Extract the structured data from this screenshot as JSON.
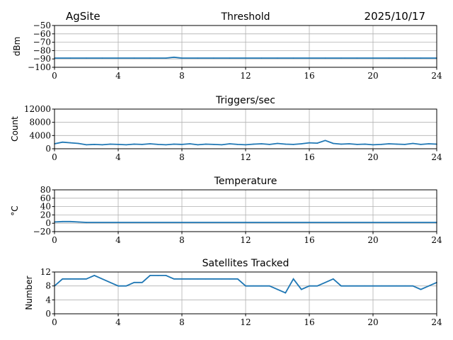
{
  "header": {
    "site": "AgSite",
    "date": "2025/10/17"
  },
  "chart_data": [
    {
      "type": "line",
      "title": "Threshold",
      "xlabel": "",
      "ylabel": "dBm",
      "xlim": [
        0,
        24
      ],
      "ylim": [
        -100,
        -50
      ],
      "xticks": [
        "0",
        "4",
        "8",
        "12",
        "16",
        "20",
        "24"
      ],
      "yticks": [
        "−50",
        "−60",
        "−70",
        "−80",
        "−90",
        "−100"
      ],
      "ytick_values": [
        -50,
        -60,
        -70,
        -80,
        -90,
        -100
      ],
      "x": [
        0,
        1,
        2,
        3,
        4,
        5,
        6,
        7,
        7.5,
        8,
        9,
        10,
        11,
        12,
        13,
        14,
        15,
        16,
        17,
        18,
        19,
        20,
        21,
        22,
        23,
        24
      ],
      "y": [
        -89,
        -89,
        -89,
        -89,
        -89,
        -89,
        -89,
        -89,
        -88,
        -89,
        -89,
        -89,
        -89,
        -89,
        -89,
        -89,
        -89,
        -89,
        -89,
        -89,
        -89,
        -89,
        -89,
        -89,
        -89,
        -89
      ],
      "grid": true,
      "color": "#1f77b4"
    },
    {
      "type": "line",
      "title": "Triggers/sec",
      "xlabel": "",
      "ylabel": "Count",
      "xlim": [
        0,
        24
      ],
      "ylim": [
        0,
        12000
      ],
      "xticks": [
        "0",
        "4",
        "8",
        "12",
        "16",
        "20",
        "24"
      ],
      "yticks": [
        "12000",
        "8000",
        "4000",
        "0"
      ],
      "ytick_values": [
        12000,
        8000,
        4000,
        0
      ],
      "x": [
        0,
        0.5,
        1,
        1.5,
        2,
        2.5,
        3,
        3.5,
        4,
        4.5,
        5,
        5.5,
        6,
        6.5,
        7,
        7.5,
        8,
        8.5,
        9,
        9.5,
        10,
        10.5,
        11,
        11.5,
        12,
        12.5,
        13,
        13.5,
        14,
        14.5,
        15,
        15.5,
        16,
        16.5,
        17,
        17.5,
        18,
        18.5,
        19,
        19.5,
        20,
        20.5,
        21,
        21.5,
        22,
        22.5,
        23,
        23.5,
        24
      ],
      "y": [
        1500,
        2000,
        1800,
        1600,
        1200,
        1300,
        1200,
        1400,
        1300,
        1200,
        1400,
        1300,
        1500,
        1300,
        1200,
        1400,
        1300,
        1500,
        1200,
        1400,
        1300,
        1200,
        1500,
        1300,
        1200,
        1400,
        1500,
        1300,
        1600,
        1400,
        1300,
        1500,
        1800,
        1700,
        2500,
        1600,
        1400,
        1500,
        1300,
        1400,
        1200,
        1300,
        1500,
        1400,
        1300,
        1600,
        1300,
        1500,
        1400
      ],
      "grid": true,
      "color": "#1f77b4"
    },
    {
      "type": "line",
      "title": "Temperature",
      "xlabel": "",
      "ylabel": "°C",
      "xlim": [
        0,
        24
      ],
      "ylim": [
        -20,
        80
      ],
      "xticks": [
        "0",
        "4",
        "8",
        "12",
        "16",
        "20",
        "24"
      ],
      "yticks": [
        "80",
        "60",
        "40",
        "20",
        "0",
        "−20"
      ],
      "ytick_values": [
        80,
        60,
        40,
        20,
        0,
        -20
      ],
      "x": [
        0,
        0.5,
        1,
        1.5,
        2,
        4,
        8,
        12,
        16,
        20,
        24
      ],
      "y": [
        3,
        4,
        4,
        3,
        2,
        2,
        2,
        2,
        2,
        2,
        2
      ],
      "grid": true,
      "color": "#1f77b4"
    },
    {
      "type": "line",
      "title": "Satellites Tracked",
      "xlabel": "",
      "ylabel": "Number",
      "xlim": [
        0,
        24
      ],
      "ylim": [
        0,
        12
      ],
      "xticks": [
        "0",
        "4",
        "8",
        "12",
        "16",
        "20",
        "24"
      ],
      "yticks": [
        "12",
        "8",
        "4",
        "0"
      ],
      "ytick_values": [
        12,
        8,
        4,
        0
      ],
      "x": [
        0,
        0.25,
        0.5,
        1,
        1.5,
        2,
        2.5,
        3,
        3.5,
        4,
        4.5,
        5,
        5.5,
        6,
        6.5,
        7,
        7.5,
        8,
        8.5,
        9,
        9.5,
        10,
        10.5,
        11,
        11.5,
        12,
        12.5,
        13,
        13.5,
        14,
        14.5,
        15,
        15.5,
        16,
        16.5,
        17,
        17.5,
        18,
        18.5,
        19,
        19.5,
        20,
        20.5,
        21,
        21.5,
        22,
        22.5,
        23,
        23.5,
        24
      ],
      "y": [
        8,
        9,
        10,
        10,
        10,
        10,
        11,
        10,
        9,
        8,
        8,
        9,
        9,
        11,
        11,
        11,
        10,
        10,
        10,
        10,
        10,
        10,
        10,
        10,
        10,
        8,
        8,
        8,
        8,
        7,
        6,
        10,
        7,
        8,
        8,
        9,
        10,
        8,
        8,
        8,
        8,
        8,
        8,
        8,
        8,
        8,
        8,
        7,
        8,
        9
      ],
      "grid": true,
      "color": "#1f77b4"
    }
  ]
}
